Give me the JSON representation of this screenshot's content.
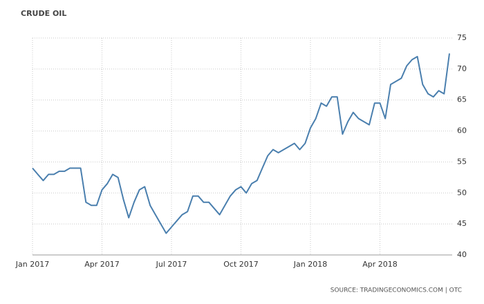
{
  "chart_data": {
    "type": "line",
    "title": "CRUDE OIL",
    "source": "SOURCE: TRADINGECONOMICS.COM | OTC",
    "categories": [
      "Jan 2017",
      null,
      null,
      null,
      null,
      null,
      null,
      null,
      null,
      null,
      null,
      null,
      null,
      "Apr 2017",
      null,
      null,
      null,
      null,
      null,
      null,
      null,
      null,
      null,
      null,
      null,
      null,
      "Jul 2017",
      null,
      null,
      null,
      null,
      null,
      null,
      null,
      null,
      null,
      null,
      null,
      null,
      "Oct 2017",
      null,
      null,
      null,
      null,
      null,
      null,
      null,
      null,
      null,
      null,
      null,
      null,
      "Jan 2018",
      null,
      null,
      null,
      null,
      null,
      null,
      null,
      null,
      null,
      null,
      null,
      null,
      "Apr 2018",
      null,
      null,
      null,
      null,
      null,
      null,
      null,
      null,
      null,
      null,
      null,
      null,
      null
    ],
    "series": [
      {
        "name": "Crude Oil",
        "color": "#4a7fae",
        "values": [
          54,
          53,
          52,
          53,
          53,
          53.5,
          53.5,
          54,
          54,
          54,
          48.5,
          48,
          48,
          50.5,
          51.5,
          53,
          52.5,
          49,
          46,
          48.5,
          50.5,
          51,
          48,
          46.5,
          45,
          43.5,
          44.5,
          45.5,
          46.5,
          47,
          49.5,
          49.5,
          48.5,
          48.5,
          47.5,
          46.5,
          48,
          49.5,
          50.5,
          51,
          50,
          51.5,
          52,
          54,
          56,
          57,
          56.5,
          57,
          57.5,
          58,
          57,
          58,
          60.5,
          62,
          64.5,
          64,
          65.5,
          65.5,
          59.5,
          61.5,
          63,
          62,
          61.5,
          61,
          64.5,
          64.5,
          62,
          67.5,
          68,
          68.5,
          70.5,
          71.5,
          72,
          67.5,
          66,
          65.5,
          66.5,
          66,
          72.5
        ]
      }
    ],
    "ylim": [
      40,
      75
    ],
    "yticks": [
      40,
      45,
      50,
      55,
      60,
      65,
      70,
      75
    ],
    "grid": true
  }
}
